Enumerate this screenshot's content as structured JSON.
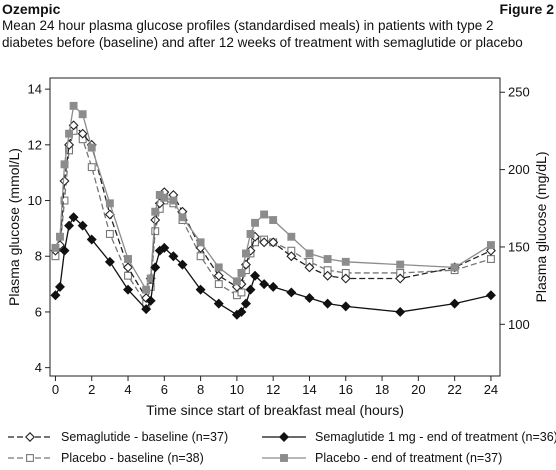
{
  "header": {
    "drug": "Ozempic",
    "figure": "Figure 2",
    "caption_line1": "Mean 24 hour plasma glucose profiles (standardised meals) in patients with type 2",
    "caption_line2": "diabetes before (baseline) and after 12 weeks of treatment with semaglutide or placebo"
  },
  "chart_data": {
    "type": "line",
    "title": "",
    "xlabel": "Time since start of breakfast meal (hours)",
    "ylabel": "Plasma glucose (mmol/L)",
    "ylabel_right": "Plasma glucose (mg/dL)",
    "xlim": [
      -0.3,
      24.5
    ],
    "ylim": [
      3.7,
      14.4
    ],
    "xticks": [
      0,
      2,
      4,
      6,
      8,
      10,
      12,
      14,
      16,
      18,
      20,
      22,
      24
    ],
    "yticks": [
      4,
      6,
      8,
      10,
      12,
      14
    ],
    "yticks_right": [
      100,
      150,
      200,
      250
    ],
    "grid": false,
    "legend_position": "bottom",
    "series": [
      {
        "name": "Semaglutide - baseline (n=37)",
        "color": "#222222",
        "line": "dashed",
        "marker": "open-diamond",
        "x": [
          0,
          0.25,
          0.5,
          0.75,
          1,
          1.5,
          2,
          3,
          4,
          5,
          5.25,
          5.5,
          5.75,
          6,
          6.5,
          7,
          8,
          9,
          10,
          10.25,
          10.5,
          10.75,
          11,
          11.5,
          12,
          13,
          14,
          15,
          16,
          19,
          22,
          24
        ],
        "y": [
          8.2,
          8.4,
          10.7,
          12.0,
          12.7,
          12.4,
          12.0,
          9.5,
          7.6,
          6.5,
          7.2,
          9.3,
          9.9,
          10.3,
          10.2,
          9.6,
          8.3,
          7.3,
          6.9,
          7.0,
          7.7,
          8.2,
          8.7,
          8.5,
          8.5,
          8.0,
          7.6,
          7.3,
          7.2,
          7.2,
          7.6,
          8.2
        ]
      },
      {
        "name": "Placebo - baseline (n=38)",
        "color": "#777777",
        "line": "dashed",
        "marker": "open-square",
        "x": [
          0,
          0.25,
          0.5,
          0.75,
          1,
          1.5,
          2,
          3,
          4,
          5,
          5.25,
          5.5,
          5.75,
          6,
          6.5,
          7,
          8,
          9,
          10,
          10.25,
          10.5,
          10.75,
          11,
          11.5,
          12,
          13,
          14,
          15,
          16,
          19,
          22,
          24
        ],
        "y": [
          8.0,
          8.3,
          10.0,
          11.8,
          12.5,
          12.2,
          11.2,
          8.8,
          7.3,
          6.3,
          6.9,
          8.9,
          9.7,
          10.0,
          9.9,
          9.3,
          8.0,
          7.0,
          6.6,
          6.7,
          7.5,
          8.1,
          8.5,
          8.6,
          8.5,
          8.2,
          7.8,
          7.5,
          7.4,
          7.4,
          7.5,
          7.9
        ]
      },
      {
        "name": "Semaglutide 1 mg - end of treatment (n=36)",
        "color": "#111111",
        "line": "solid",
        "marker": "filled-diamond",
        "x": [
          0,
          0.25,
          0.5,
          0.75,
          1,
          1.5,
          2,
          3,
          4,
          5,
          5.25,
          5.5,
          5.75,
          6,
          6.5,
          7,
          8,
          9,
          10,
          10.25,
          10.5,
          10.75,
          11,
          11.5,
          12,
          13,
          14,
          15,
          16,
          19,
          22,
          24
        ],
        "y": [
          6.6,
          6.9,
          8.2,
          9.1,
          9.4,
          9.1,
          8.6,
          7.8,
          6.8,
          6.1,
          6.4,
          7.6,
          8.2,
          8.3,
          8.0,
          7.7,
          6.8,
          6.3,
          5.9,
          6.0,
          6.3,
          6.8,
          7.3,
          7.0,
          6.9,
          6.7,
          6.5,
          6.3,
          6.2,
          6.0,
          6.3,
          6.6
        ]
      },
      {
        "name": "Placebo - end of treatment (n=37)",
        "color": "#8c8c8c",
        "line": "solid",
        "marker": "filled-square",
        "x": [
          0,
          0.25,
          0.5,
          0.75,
          1,
          1.5,
          2,
          3,
          4,
          5,
          5.25,
          5.5,
          5.75,
          6,
          6.5,
          7,
          8,
          9,
          10,
          10.25,
          10.5,
          10.75,
          11,
          11.5,
          12,
          13,
          14,
          15,
          16,
          19,
          22,
          24
        ],
        "y": [
          8.3,
          8.7,
          11.3,
          12.4,
          13.4,
          13.1,
          11.9,
          9.9,
          7.9,
          6.8,
          7.2,
          9.6,
          10.2,
          10.1,
          10.0,
          9.4,
          8.5,
          7.6,
          7.1,
          7.4,
          8.1,
          8.8,
          9.2,
          9.5,
          9.3,
          8.7,
          8.1,
          7.9,
          7.8,
          7.7,
          7.6,
          8.4
        ]
      }
    ]
  }
}
